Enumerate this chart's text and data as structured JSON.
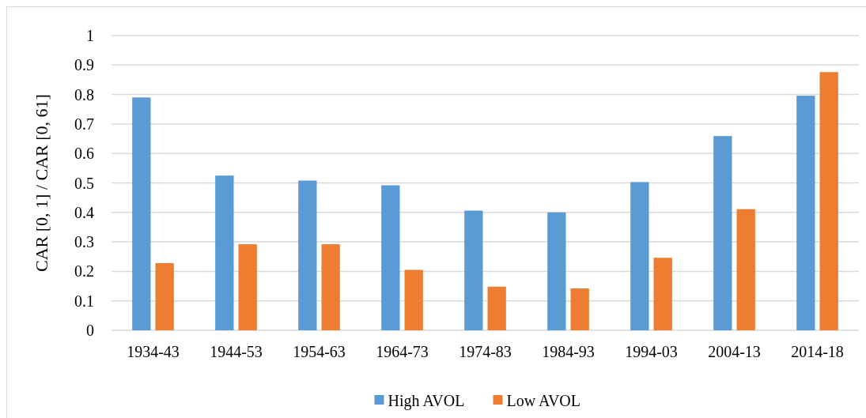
{
  "chart_data": {
    "type": "bar",
    "ylabel": "CAR [0, 1] / CAR [0, 61]",
    "categories": [
      "1934-43",
      "1944-53",
      "1954-63",
      "1964-73",
      "1974-83",
      "1984-93",
      "1994-03",
      "2004-13",
      "2014-18"
    ],
    "series": [
      {
        "name": "High AVOL",
        "color": "#5b9bd5",
        "values": [
          0.79,
          0.525,
          0.508,
          0.492,
          0.406,
          0.4,
          0.503,
          0.659,
          0.796
        ]
      },
      {
        "name": "Low AVOL",
        "color": "#ed7d31",
        "values": [
          0.228,
          0.292,
          0.292,
          0.205,
          0.148,
          0.142,
          0.246,
          0.411,
          0.876
        ]
      }
    ],
    "ylim": [
      0,
      1
    ],
    "yticks": [
      0,
      0.1,
      0.2,
      0.3,
      0.4,
      0.5,
      0.6,
      0.7,
      0.8,
      0.9,
      1
    ],
    "grid": "y",
    "legend": "bottom"
  }
}
